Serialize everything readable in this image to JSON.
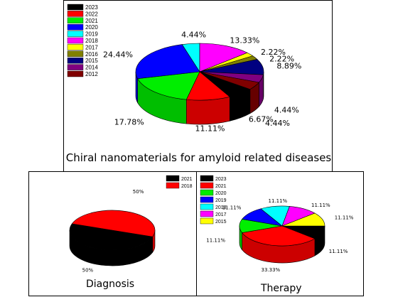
{
  "chart_data": [
    {
      "type": "pie",
      "title": "Chiral nanomaterials for amyloid related diseases",
      "legend_position": "top-left",
      "series": [
        {
          "name": "2023",
          "value": 6.67,
          "label": "6.67%",
          "color": "#000000"
        },
        {
          "name": "2022",
          "value": 11.11,
          "label": "11.11%",
          "color": "#ff0000"
        },
        {
          "name": "2021",
          "value": 17.78,
          "label": "17.78%",
          "color": "#00ee00"
        },
        {
          "name": "2020",
          "value": 24.44,
          "label": "24.44%",
          "color": "#0000ff"
        },
        {
          "name": "2019",
          "value": 4.44,
          "label": "4.44%",
          "color": "#00ffff"
        },
        {
          "name": "2018",
          "value": 13.33,
          "label": "13.33%",
          "color": "#ff00ff"
        },
        {
          "name": "2017",
          "value": 2.22,
          "label": "2.22%",
          "color": "#ffff00"
        },
        {
          "name": "2016",
          "value": 2.22,
          "label": "2.22%",
          "color": "#808000"
        },
        {
          "name": "2015",
          "value": 8.89,
          "label": "8.89%",
          "color": "#000080"
        },
        {
          "name": "2014",
          "value": 4.44,
          "label": "4.44%",
          "color": "#800080"
        },
        {
          "name": "2012",
          "value": 4.44,
          "label": "4.44%",
          "color": "#800000"
        }
      ]
    },
    {
      "type": "pie",
      "title": "Diagnosis",
      "legend_position": "top-right",
      "series": [
        {
          "name": "2021",
          "value": 50,
          "label": "50%",
          "color": "#000000"
        },
        {
          "name": "2018",
          "value": 50,
          "label": "50%",
          "color": "#ff0000"
        }
      ]
    },
    {
      "type": "pie",
      "title": "Therapy",
      "legend_position": "top-left",
      "series": [
        {
          "name": "2023",
          "value": 11.11,
          "label": "11.11%",
          "color": "#000000"
        },
        {
          "name": "2021",
          "value": 33.33,
          "label": "33.33%",
          "color": "#ff0000"
        },
        {
          "name": "2020",
          "value": 11.11,
          "label": "11.11%",
          "color": "#00ee00"
        },
        {
          "name": "2019",
          "value": 11.11,
          "label": "11.11%",
          "color": "#0000ff"
        },
        {
          "name": "2018",
          "value": 11.11,
          "label": "11.11%",
          "color": "#00ffff"
        },
        {
          "name": "2017",
          "value": 11.11,
          "label": "11.11%",
          "color": "#ff00ff"
        },
        {
          "name": "2015",
          "value": 11.11,
          "label": "11.11%",
          "color": "#ffff00"
        }
      ]
    }
  ]
}
